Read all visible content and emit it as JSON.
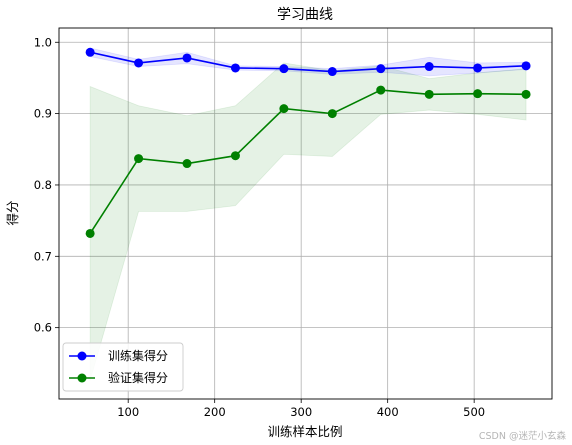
{
  "chart_data": {
    "type": "line",
    "title": "学习曲线",
    "xlabel": "训练样本比例",
    "ylabel": "得分",
    "xlim": [
      20,
      590
    ],
    "ylim": [
      0.5,
      1.02
    ],
    "x_ticks": [
      100,
      200,
      300,
      400,
      500
    ],
    "y_ticks": [
      0.6,
      0.7,
      0.8,
      0.9,
      1.0
    ],
    "x_tick_labels": [
      "100",
      "200",
      "300",
      "400",
      "500"
    ],
    "y_tick_labels": [
      "0.6",
      "0.7",
      "0.8",
      "0.9",
      "1.0"
    ],
    "grid": true,
    "legend_position": "lower-left",
    "x": [
      56,
      112,
      168,
      224,
      280,
      336,
      392,
      448,
      504,
      560
    ],
    "series": [
      {
        "name": "训练集得分",
        "color": "#0000ff",
        "marker": "circle",
        "values": [
          0.986,
          0.971,
          0.978,
          0.964,
          0.963,
          0.959,
          0.963,
          0.966,
          0.964,
          0.967
        ],
        "band_lower": [
          0.98,
          0.966,
          0.97,
          0.961,
          0.96,
          0.955,
          0.958,
          0.953,
          0.957,
          0.962
        ],
        "band_upper": [
          0.992,
          0.976,
          0.986,
          0.967,
          0.966,
          0.963,
          0.968,
          0.979,
          0.971,
          0.972
        ]
      },
      {
        "name": "验证集得分",
        "color": "#008000",
        "marker": "circle",
        "values": [
          0.732,
          0.837,
          0.83,
          0.841,
          0.907,
          0.9,
          0.933,
          0.927,
          0.928,
          0.927
        ],
        "band_lower": [
          0.526,
          0.763,
          0.763,
          0.771,
          0.843,
          0.84,
          0.899,
          0.905,
          0.899,
          0.891
        ],
        "band_upper": [
          0.938,
          0.911,
          0.897,
          0.911,
          0.971,
          0.96,
          0.967,
          0.949,
          0.957,
          0.963
        ]
      }
    ]
  },
  "watermark": "CSDN @迷茫小玄森"
}
